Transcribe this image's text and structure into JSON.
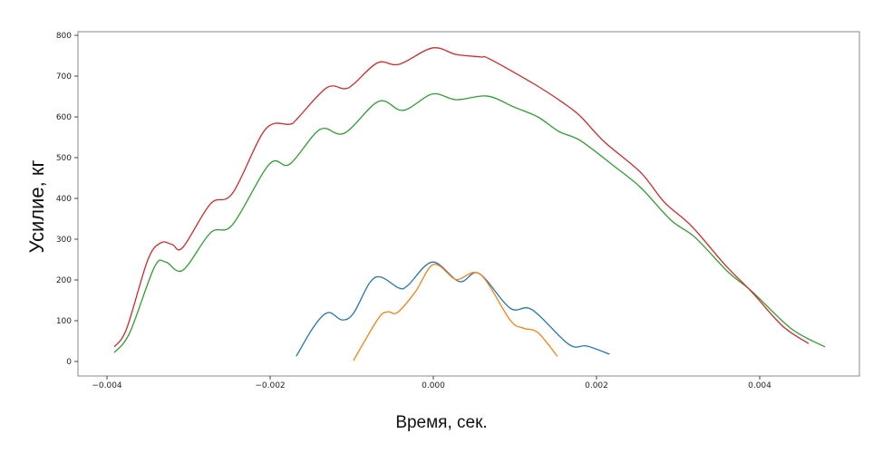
{
  "chart_data": {
    "type": "line",
    "title": "",
    "xlabel": "Время, сек.",
    "ylabel": "Усилие, кг",
    "xlim": [
      -0.0045,
      0.0052
    ],
    "ylim": [
      -35,
      810
    ],
    "xticks": [
      -0.004,
      -0.002,
      0.0,
      0.002,
      0.004
    ],
    "xtick_labels": [
      "−0.004",
      "−0.002",
      "0.000",
      "0.002",
      "0.004"
    ],
    "yticks": [
      0,
      100,
      200,
      300,
      400,
      500,
      600,
      700,
      800
    ],
    "ytick_labels": [
      "0",
      "100",
      "200",
      "300",
      "400",
      "500",
      "600",
      "700",
      "800"
    ],
    "grid": false,
    "legend": "none",
    "series": [
      {
        "color": "#1f77b4",
        "x": [
          -0.00168,
          -0.00146,
          -0.00129,
          -0.00112,
          -0.00098,
          -0.00078,
          -0.00064,
          -0.00042,
          -0.00031,
          -1e-05,
          0.00032,
          0.00056,
          0.00094,
          0.00121,
          0.00166,
          0.00188,
          0.00216
        ],
        "y": [
          13,
          87,
          120,
          102,
          118,
          193,
          207,
          180,
          187,
          244,
          196,
          216,
          131,
          127,
          42,
          38,
          18
        ]
      },
      {
        "color": "#ff7f0e",
        "x": [
          -0.00098,
          -0.00068,
          -0.00056,
          -0.00044,
          -0.00022,
          0.0,
          0.00024,
          0.00032,
          0.00058,
          0.00094,
          0.0011,
          0.00128,
          0.00152
        ],
        "y": [
          2,
          104,
          122,
          120,
          171,
          238,
          205,
          202,
          213,
          102,
          82,
          71,
          13
        ]
      },
      {
        "color": "#2ca02c",
        "x": [
          -0.00391,
          -0.00372,
          -0.00342,
          -0.00328,
          -0.00307,
          -0.00273,
          -0.00246,
          -0.00201,
          -0.00176,
          -0.00139,
          -0.00109,
          -0.00067,
          -0.00037,
          -1e-05,
          0.00028,
          0.00066,
          0.00099,
          0.00128,
          0.00154,
          0.0018,
          0.00221,
          0.00254,
          0.00291,
          0.00321,
          0.00361,
          0.00391,
          0.00439,
          0.0048
        ],
        "y": [
          22,
          71,
          231,
          244,
          224,
          316,
          336,
          484,
          484,
          569,
          560,
          638,
          616,
          656,
          642,
          651,
          624,
          600,
          564,
          542,
          480,
          427,
          347,
          304,
          220,
          171,
          80,
          36
        ]
      },
      {
        "color": "#d62728",
        "x": [
          -0.00391,
          -0.00376,
          -0.0035,
          -0.00334,
          -0.0032,
          -0.00307,
          -0.00273,
          -0.00246,
          -0.00206,
          -0.00176,
          -0.00168,
          -0.00131,
          -0.00109,
          -0.00098,
          -0.00068,
          -0.00042,
          -1e-05,
          0.00028,
          0.00058,
          0.00069,
          0.00124,
          0.00158,
          0.0018,
          0.0021,
          0.00254,
          0.00283,
          0.00317,
          0.00358,
          0.00391,
          0.00428,
          0.0046
        ],
        "y": [
          36,
          80,
          249,
          291,
          287,
          280,
          387,
          413,
          569,
          582,
          593,
          671,
          669,
          680,
          733,
          729,
          769,
          753,
          747,
          742,
          680,
          636,
          602,
          538,
          464,
          391,
          331,
          236,
          169,
          87,
          44
        ]
      }
    ]
  }
}
